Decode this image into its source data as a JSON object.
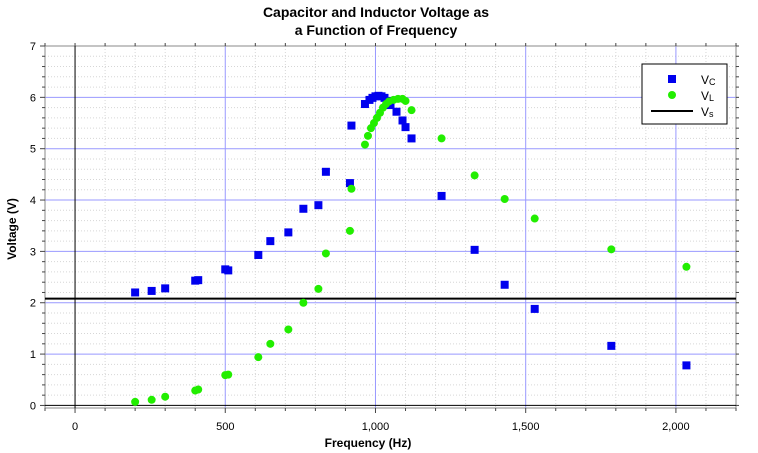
{
  "chart_data": {
    "type": "scatter",
    "title_lines": [
      "Capacitor and Inductor Voltage as",
      "a Function of Frequency"
    ],
    "xlabel": "Frequency (Hz)",
    "ylabel": "Voltage (V)",
    "xlim": [
      -100,
      2200
    ],
    "ylim": [
      -0.05,
      7.0
    ],
    "xticks": [
      0,
      500,
      1000,
      1500,
      2000
    ],
    "xtick_labels": [
      "0",
      "500",
      "1,000",
      "1,500",
      "2,000"
    ],
    "yticks": [
      0,
      1,
      2,
      3,
      4,
      5,
      6,
      7
    ],
    "ytick_labels": [
      "0",
      "1",
      "2",
      "3",
      "4",
      "5",
      "6",
      "7"
    ],
    "grid": true,
    "legend_position": "top-right",
    "series": [
      {
        "name": "VC",
        "name_main": "V",
        "name_sub": "C",
        "marker": "square",
        "color": "#0000ee",
        "points": [
          [
            200,
            2.2
          ],
          [
            255,
            2.23
          ],
          [
            300,
            2.28
          ],
          [
            400,
            2.43
          ],
          [
            410,
            2.44
          ],
          [
            500,
            2.65
          ],
          [
            510,
            2.63
          ],
          [
            610,
            2.93
          ],
          [
            650,
            3.2
          ],
          [
            710,
            3.37
          ],
          [
            760,
            3.83
          ],
          [
            810,
            3.9
          ],
          [
            835,
            4.55
          ],
          [
            915,
            4.33
          ],
          [
            920,
            5.45
          ],
          [
            965,
            5.87
          ],
          [
            980,
            5.95
          ],
          [
            990,
            5.99
          ],
          [
            1000,
            6.02
          ],
          [
            1010,
            6.03
          ],
          [
            1020,
            6.02
          ],
          [
            1030,
            5.99
          ],
          [
            1040,
            5.93
          ],
          [
            1050,
            5.85
          ],
          [
            1070,
            5.72
          ],
          [
            1090,
            5.55
          ],
          [
            1100,
            5.42
          ],
          [
            1120,
            5.2
          ],
          [
            1220,
            4.08
          ],
          [
            1330,
            3.03
          ],
          [
            1430,
            2.35
          ],
          [
            1530,
            1.88
          ],
          [
            1785,
            1.16
          ],
          [
            2035,
            0.78
          ]
        ]
      },
      {
        "name": "VL",
        "name_main": "V",
        "name_sub": "L",
        "marker": "circle",
        "color": "#22ee00",
        "points": [
          [
            200,
            0.07
          ],
          [
            255,
            0.11
          ],
          [
            300,
            0.17
          ],
          [
            400,
            0.29
          ],
          [
            410,
            0.31
          ],
          [
            500,
            0.59
          ],
          [
            510,
            0.6
          ],
          [
            610,
            0.94
          ],
          [
            650,
            1.2
          ],
          [
            710,
            1.48
          ],
          [
            760,
            2.0
          ],
          [
            810,
            2.27
          ],
          [
            835,
            2.96
          ],
          [
            915,
            3.4
          ],
          [
            920,
            4.22
          ],
          [
            965,
            5.08
          ],
          [
            975,
            5.25
          ],
          [
            985,
            5.4
          ],
          [
            995,
            5.5
          ],
          [
            1005,
            5.6
          ],
          [
            1015,
            5.7
          ],
          [
            1025,
            5.8
          ],
          [
            1035,
            5.87
          ],
          [
            1045,
            5.92
          ],
          [
            1060,
            5.95
          ],
          [
            1075,
            5.97
          ],
          [
            1090,
            5.97
          ],
          [
            1100,
            5.93
          ],
          [
            1120,
            5.75
          ],
          [
            1220,
            5.2
          ],
          [
            1330,
            4.48
          ],
          [
            1430,
            4.02
          ],
          [
            1530,
            3.64
          ],
          [
            1785,
            3.04
          ],
          [
            2035,
            2.7
          ]
        ]
      },
      {
        "name": "Vs",
        "name_main": "V",
        "name_sub": "s",
        "marker": "line",
        "color": "#000000",
        "y_const": 2.08
      }
    ]
  }
}
